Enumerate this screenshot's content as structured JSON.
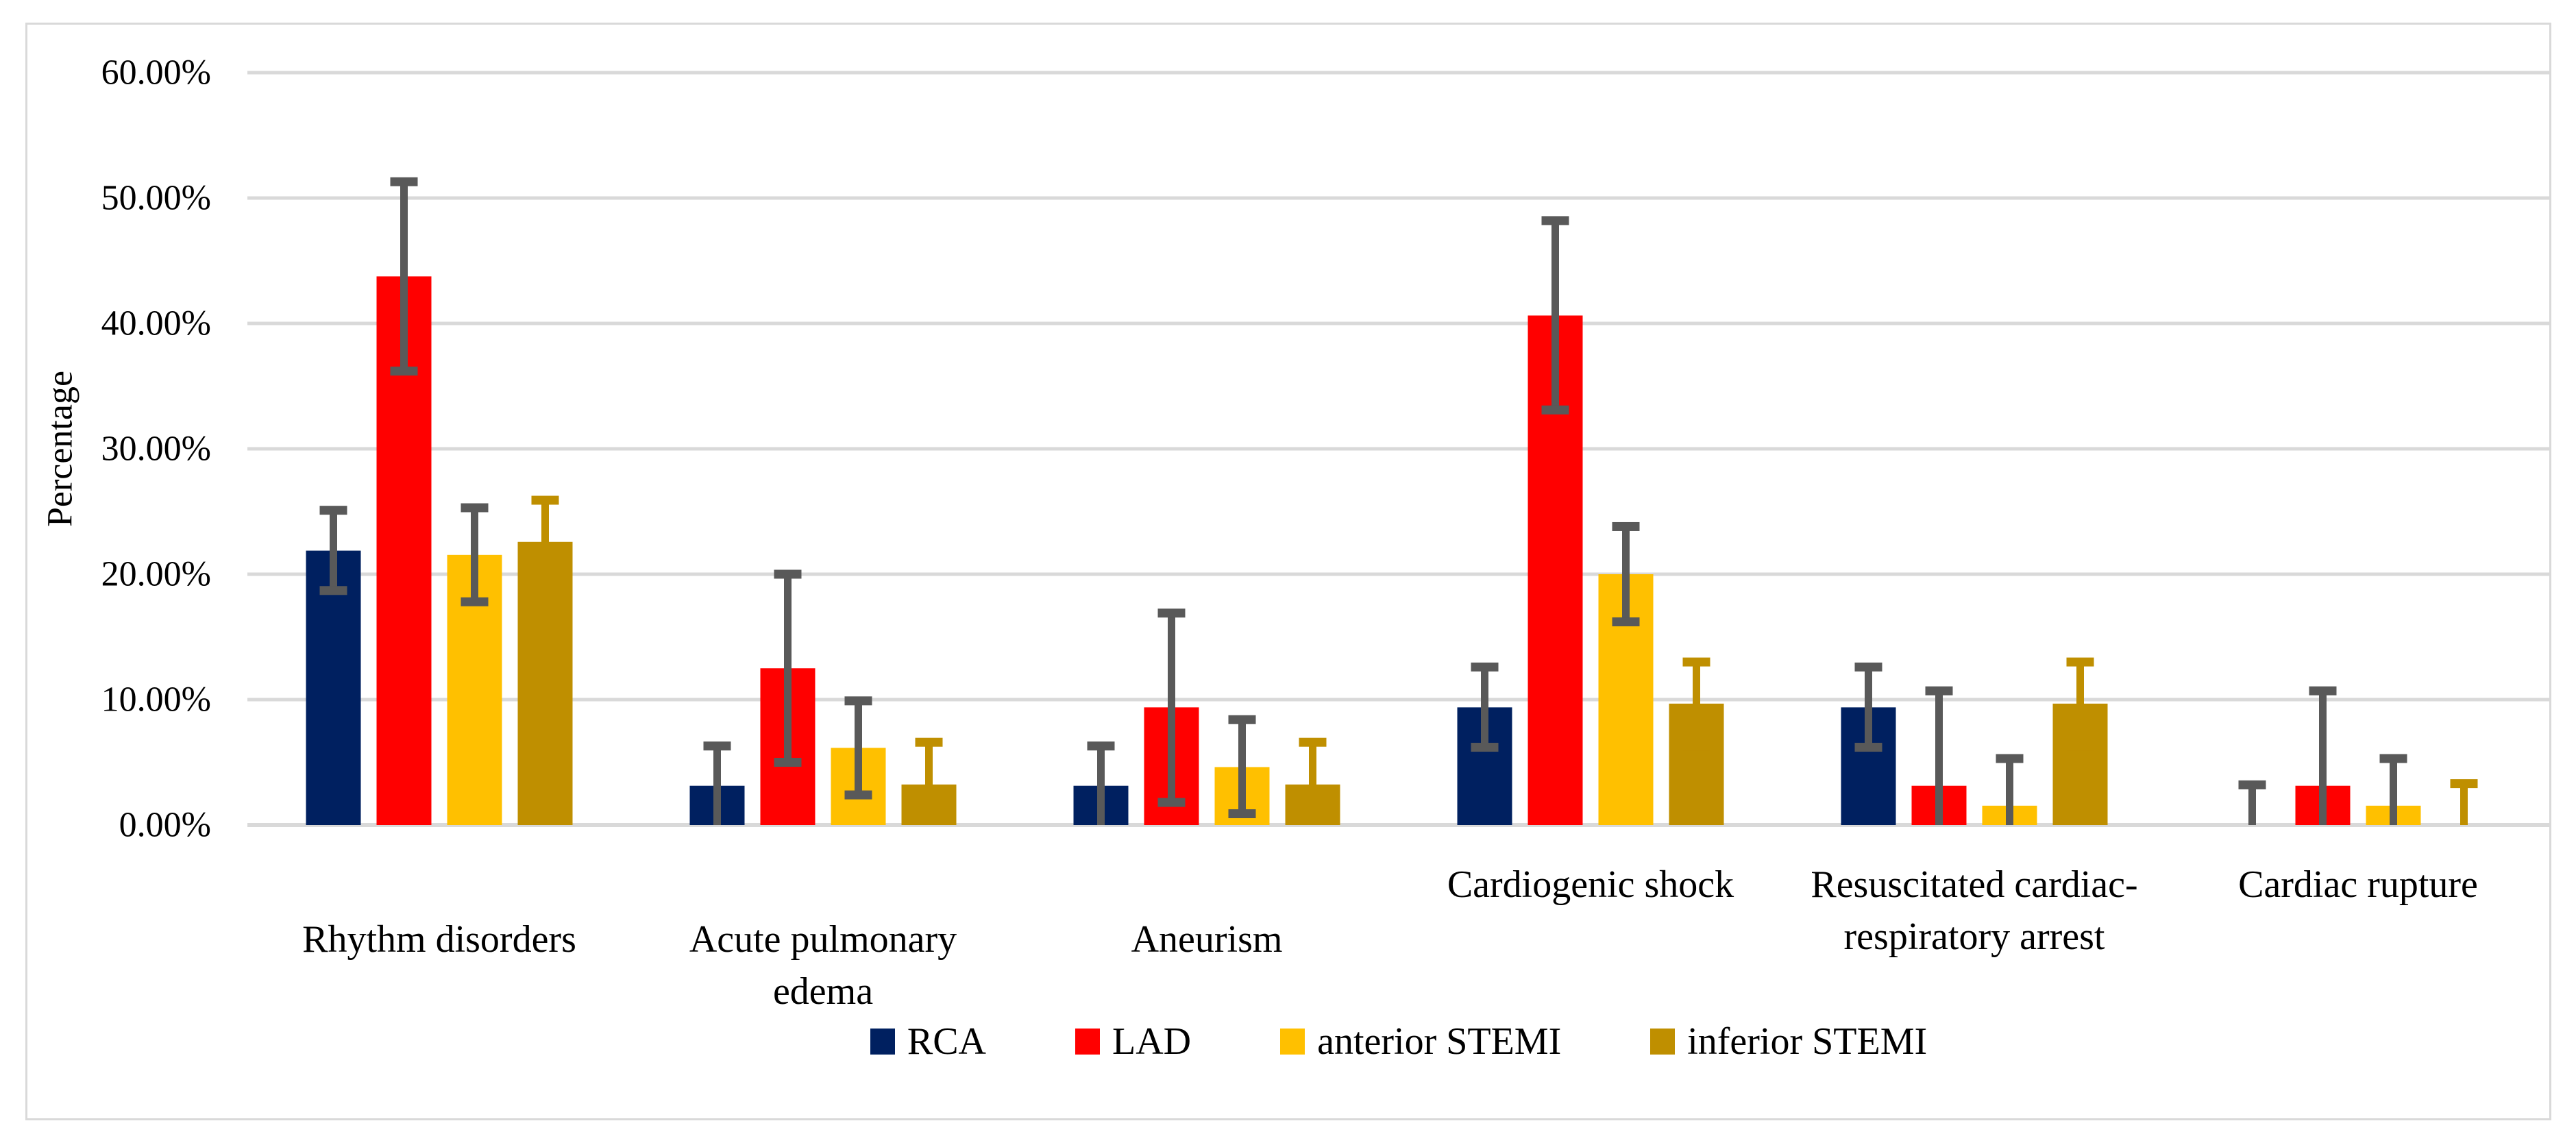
{
  "chart_data": {
    "type": "bar",
    "title": "",
    "xlabel": "",
    "ylabel": "Percentage",
    "ylim": [
      0,
      60
    ],
    "grid": "horizontal",
    "legend_position": "bottom",
    "yticks": [
      {
        "v": 0,
        "label": "0.00%"
      },
      {
        "v": 10,
        "label": "10.00%"
      },
      {
        "v": 20,
        "label": "20.00%"
      },
      {
        "v": 30,
        "label": "30.00%"
      },
      {
        "v": 40,
        "label": "40.00%"
      },
      {
        "v": 50,
        "label": "50.00%"
      },
      {
        "v": 60,
        "label": "60.00%"
      }
    ],
    "categories": [
      "Rhythm disorders",
      "Acute pulmonary edema",
      "Aneurism",
      "Cardiogenic shock",
      "Resuscitated cardiac-respiratory arrest",
      "Cardiac rupture"
    ],
    "category_label_lines": [
      [
        "Rhythm disorders"
      ],
      [
        "Acute pulmonary",
        "edema"
      ],
      [
        "Aneurism"
      ],
      [
        "Cardiogenic shock"
      ],
      [
        "Resuscitated cardiac-",
        "respiratory arrest"
      ],
      [
        "Cardiac rupture"
      ]
    ],
    "category_label_row": [
      "low",
      "low",
      "low",
      "high",
      "high",
      "high"
    ],
    "series": [
      {
        "name": "RCA",
        "color": "#002060",
        "error_color": "#595959",
        "values": [
          21.88,
          3.13,
          3.13,
          9.38,
          9.38,
          0
        ],
        "ci": [
          [
            18.7,
            25.1
          ],
          [
            -0.1,
            6.3
          ],
          [
            -0.1,
            6.3
          ],
          [
            6.2,
            12.6
          ],
          [
            6.2,
            12.6
          ],
          [
            -3.2,
            3.2
          ]
        ]
      },
      {
        "name": "LAD",
        "color": "#FF0000",
        "error_color": "#595959",
        "values": [
          43.75,
          12.5,
          9.38,
          40.63,
          3.13,
          3.13
        ],
        "ci": [
          [
            36.2,
            51.3
          ],
          [
            5.0,
            20.0
          ],
          [
            1.8,
            16.9
          ],
          [
            33.1,
            48.2
          ],
          [
            -4.4,
            10.7
          ],
          [
            -4.4,
            10.7
          ]
        ]
      },
      {
        "name": "anterior STEMI",
        "color": "#FFC000",
        "error_color": "#595959",
        "values": [
          21.54,
          6.15,
          4.62,
          20.0,
          1.54,
          1.54
        ],
        "ci": [
          [
            17.8,
            25.3
          ],
          [
            2.4,
            9.9
          ],
          [
            0.9,
            8.4
          ],
          [
            16.2,
            23.8
          ],
          [
            -2.2,
            5.3
          ],
          [
            -2.2,
            5.3
          ]
        ]
      },
      {
        "name": "inferior STEMI",
        "color": "#BF8F00",
        "error_color": "#BF8F00",
        "values": [
          22.58,
          3.23,
          3.23,
          9.68,
          9.68,
          0
        ],
        "ci": [
          [
            19.2,
            25.9
          ],
          [
            -0.1,
            6.6
          ],
          [
            -0.1,
            6.6
          ],
          [
            6.3,
            13.0
          ],
          [
            6.3,
            13.0
          ],
          [
            -3.3,
            3.3
          ]
        ]
      }
    ],
    "colors": {
      "gridline": "#D9D9D9",
      "axis_line": "#D9D9D9",
      "figure_border": "#D9D9D9",
      "error_bar_gray": "#595959",
      "error_bar_inferior": "#BF8F00"
    }
  }
}
